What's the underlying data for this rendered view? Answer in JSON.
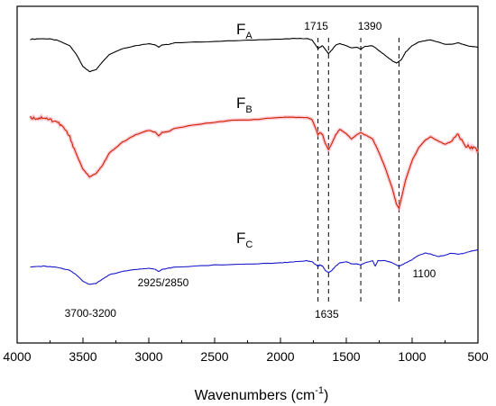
{
  "chart_data": {
    "type": "line",
    "xlabel": "Wavenumbers (cm",
    "xlabel_sup": "-1",
    "xlabel_end": ")",
    "xlim": [
      4000,
      500
    ],
    "xticks": [
      4000,
      3500,
      3000,
      2500,
      2000,
      1500,
      1000,
      500
    ],
    "x_reversed": true,
    "y_axis_visible": false,
    "grid": false,
    "series": [
      {
        "name": "F",
        "name_sub": "A",
        "color": "#000000",
        "offset": 0,
        "points": [
          [
            3900,
            83
          ],
          [
            3800,
            84
          ],
          [
            3700,
            82
          ],
          [
            3600,
            74
          ],
          [
            3550,
            62
          ],
          [
            3500,
            45
          ],
          [
            3450,
            38
          ],
          [
            3400,
            41
          ],
          [
            3350,
            52
          ],
          [
            3300,
            62
          ],
          [
            3200,
            70
          ],
          [
            3100,
            74
          ],
          [
            3000,
            77
          ],
          [
            2950,
            75
          ],
          [
            2925,
            72
          ],
          [
            2900,
            75
          ],
          [
            2850,
            76
          ],
          [
            2800,
            78
          ],
          [
            2500,
            80
          ],
          [
            2200,
            82
          ],
          [
            2000,
            83
          ],
          [
            1900,
            84
          ],
          [
            1800,
            84
          ],
          [
            1760,
            82
          ],
          [
            1730,
            74
          ],
          [
            1715,
            70
          ],
          [
            1700,
            72
          ],
          [
            1680,
            74
          ],
          [
            1660,
            69
          ],
          [
            1635,
            63
          ],
          [
            1610,
            68
          ],
          [
            1580,
            75
          ],
          [
            1550,
            77
          ],
          [
            1500,
            74
          ],
          [
            1460,
            71
          ],
          [
            1420,
            72
          ],
          [
            1390,
            69
          ],
          [
            1360,
            73
          ],
          [
            1300,
            74
          ],
          [
            1250,
            67
          ],
          [
            1200,
            60
          ],
          [
            1150,
            53
          ],
          [
            1120,
            50
          ],
          [
            1100,
            52
          ],
          [
            1080,
            55
          ],
          [
            1050,
            65
          ],
          [
            1000,
            74
          ],
          [
            950,
            79
          ],
          [
            900,
            81
          ],
          [
            860,
            82
          ],
          [
            800,
            79
          ],
          [
            750,
            76
          ],
          [
            700,
            76
          ],
          [
            650,
            78
          ],
          [
            600,
            75
          ],
          [
            550,
            73
          ],
          [
            500,
            72
          ]
        ]
      },
      {
        "name": "F",
        "name_sub": "B",
        "color": "#cc2200",
        "offset": 0,
        "points": [
          [
            3900,
            58
          ],
          [
            3850,
            57
          ],
          [
            3800,
            58
          ],
          [
            3750,
            56
          ],
          [
            3700,
            54
          ],
          [
            3650,
            49
          ],
          [
            3600,
            40
          ],
          [
            3550,
            24
          ],
          [
            3500,
            10
          ],
          [
            3450,
            3
          ],
          [
            3400,
            6
          ],
          [
            3350,
            14
          ],
          [
            3300,
            25
          ],
          [
            3200,
            35
          ],
          [
            3100,
            42
          ],
          [
            3000,
            46
          ],
          [
            2950,
            44
          ],
          [
            2925,
            41
          ],
          [
            2900,
            44
          ],
          [
            2850,
            45
          ],
          [
            2800,
            48
          ],
          [
            2600,
            52
          ],
          [
            2400,
            55
          ],
          [
            2200,
            56
          ],
          [
            2000,
            58
          ],
          [
            1900,
            58
          ],
          [
            1800,
            58
          ],
          [
            1760,
            56
          ],
          [
            1730,
            47
          ],
          [
            1715,
            42
          ],
          [
            1700,
            44
          ],
          [
            1680,
            42
          ],
          [
            1660,
            34
          ],
          [
            1635,
            28
          ],
          [
            1610,
            34
          ],
          [
            1580,
            42
          ],
          [
            1550,
            47
          ],
          [
            1500,
            43
          ],
          [
            1460,
            38
          ],
          [
            1420,
            42
          ],
          [
            1390,
            44
          ],
          [
            1360,
            42
          ],
          [
            1300,
            38
          ],
          [
            1250,
            25
          ],
          [
            1200,
            10
          ],
          [
            1150,
            -8
          ],
          [
            1120,
            -22
          ],
          [
            1100,
            -26
          ],
          [
            1080,
            -16
          ],
          [
            1050,
            0
          ],
          [
            1000,
            18
          ],
          [
            950,
            30
          ],
          [
            900,
            37
          ],
          [
            860,
            40
          ],
          [
            800,
            36
          ],
          [
            750,
            33
          ],
          [
            700,
            36
          ],
          [
            650,
            42
          ],
          [
            600,
            32
          ],
          [
            550,
            30
          ],
          [
            500,
            28
          ]
        ]
      },
      {
        "name": "F",
        "name_sub": "C",
        "color": "#1a1acc",
        "offset": 0,
        "points": [
          [
            3900,
            36
          ],
          [
            3800,
            37
          ],
          [
            3700,
            36
          ],
          [
            3600,
            33
          ],
          [
            3550,
            29
          ],
          [
            3500,
            23
          ],
          [
            3450,
            20
          ],
          [
            3400,
            21
          ],
          [
            3350,
            25
          ],
          [
            3300,
            29
          ],
          [
            3200,
            32
          ],
          [
            3100,
            34
          ],
          [
            3000,
            35
          ],
          [
            2950,
            34
          ],
          [
            2925,
            32
          ],
          [
            2900,
            34
          ],
          [
            2850,
            35
          ],
          [
            2800,
            36
          ],
          [
            2500,
            38
          ],
          [
            2200,
            39
          ],
          [
            2000,
            40
          ],
          [
            1900,
            41
          ],
          [
            1800,
            42
          ],
          [
            1760,
            41
          ],
          [
            1730,
            38
          ],
          [
            1715,
            37
          ],
          [
            1700,
            38
          ],
          [
            1680,
            37
          ],
          [
            1660,
            33
          ],
          [
            1635,
            31
          ],
          [
            1610,
            33
          ],
          [
            1580,
            37
          ],
          [
            1550,
            40
          ],
          [
            1500,
            41
          ],
          [
            1460,
            39
          ],
          [
            1420,
            39
          ],
          [
            1390,
            38
          ],
          [
            1360,
            40
          ],
          [
            1300,
            42
          ],
          [
            1280,
            37
          ],
          [
            1260,
            42
          ],
          [
            1200,
            42
          ],
          [
            1150,
            40
          ],
          [
            1120,
            38
          ],
          [
            1100,
            37
          ],
          [
            1080,
            38
          ],
          [
            1050,
            40
          ],
          [
            1000,
            43
          ],
          [
            950,
            47
          ],
          [
            900,
            49
          ],
          [
            860,
            48
          ],
          [
            800,
            46
          ],
          [
            750,
            47
          ],
          [
            700,
            49
          ],
          [
            650,
            48
          ],
          [
            600,
            49
          ],
          [
            550,
            51
          ],
          [
            500,
            52
          ]
        ]
      }
    ],
    "reference_lines": [
      1715,
      1635,
      1390,
      1100
    ],
    "annotations": [
      {
        "text": "1715",
        "wn": 1715,
        "where": "top"
      },
      {
        "text": "1390",
        "wn": 1390,
        "where": "top"
      },
      {
        "text": "1635",
        "wn": 1635,
        "where": "below-lines"
      },
      {
        "text": "1100",
        "wn": 1100,
        "where": "right-of-C"
      },
      {
        "text": "3700-3200",
        "wn": 3450,
        "where": "below-C"
      },
      {
        "text": "2925/2850",
        "wn": 2925,
        "where": "below-C"
      }
    ]
  }
}
